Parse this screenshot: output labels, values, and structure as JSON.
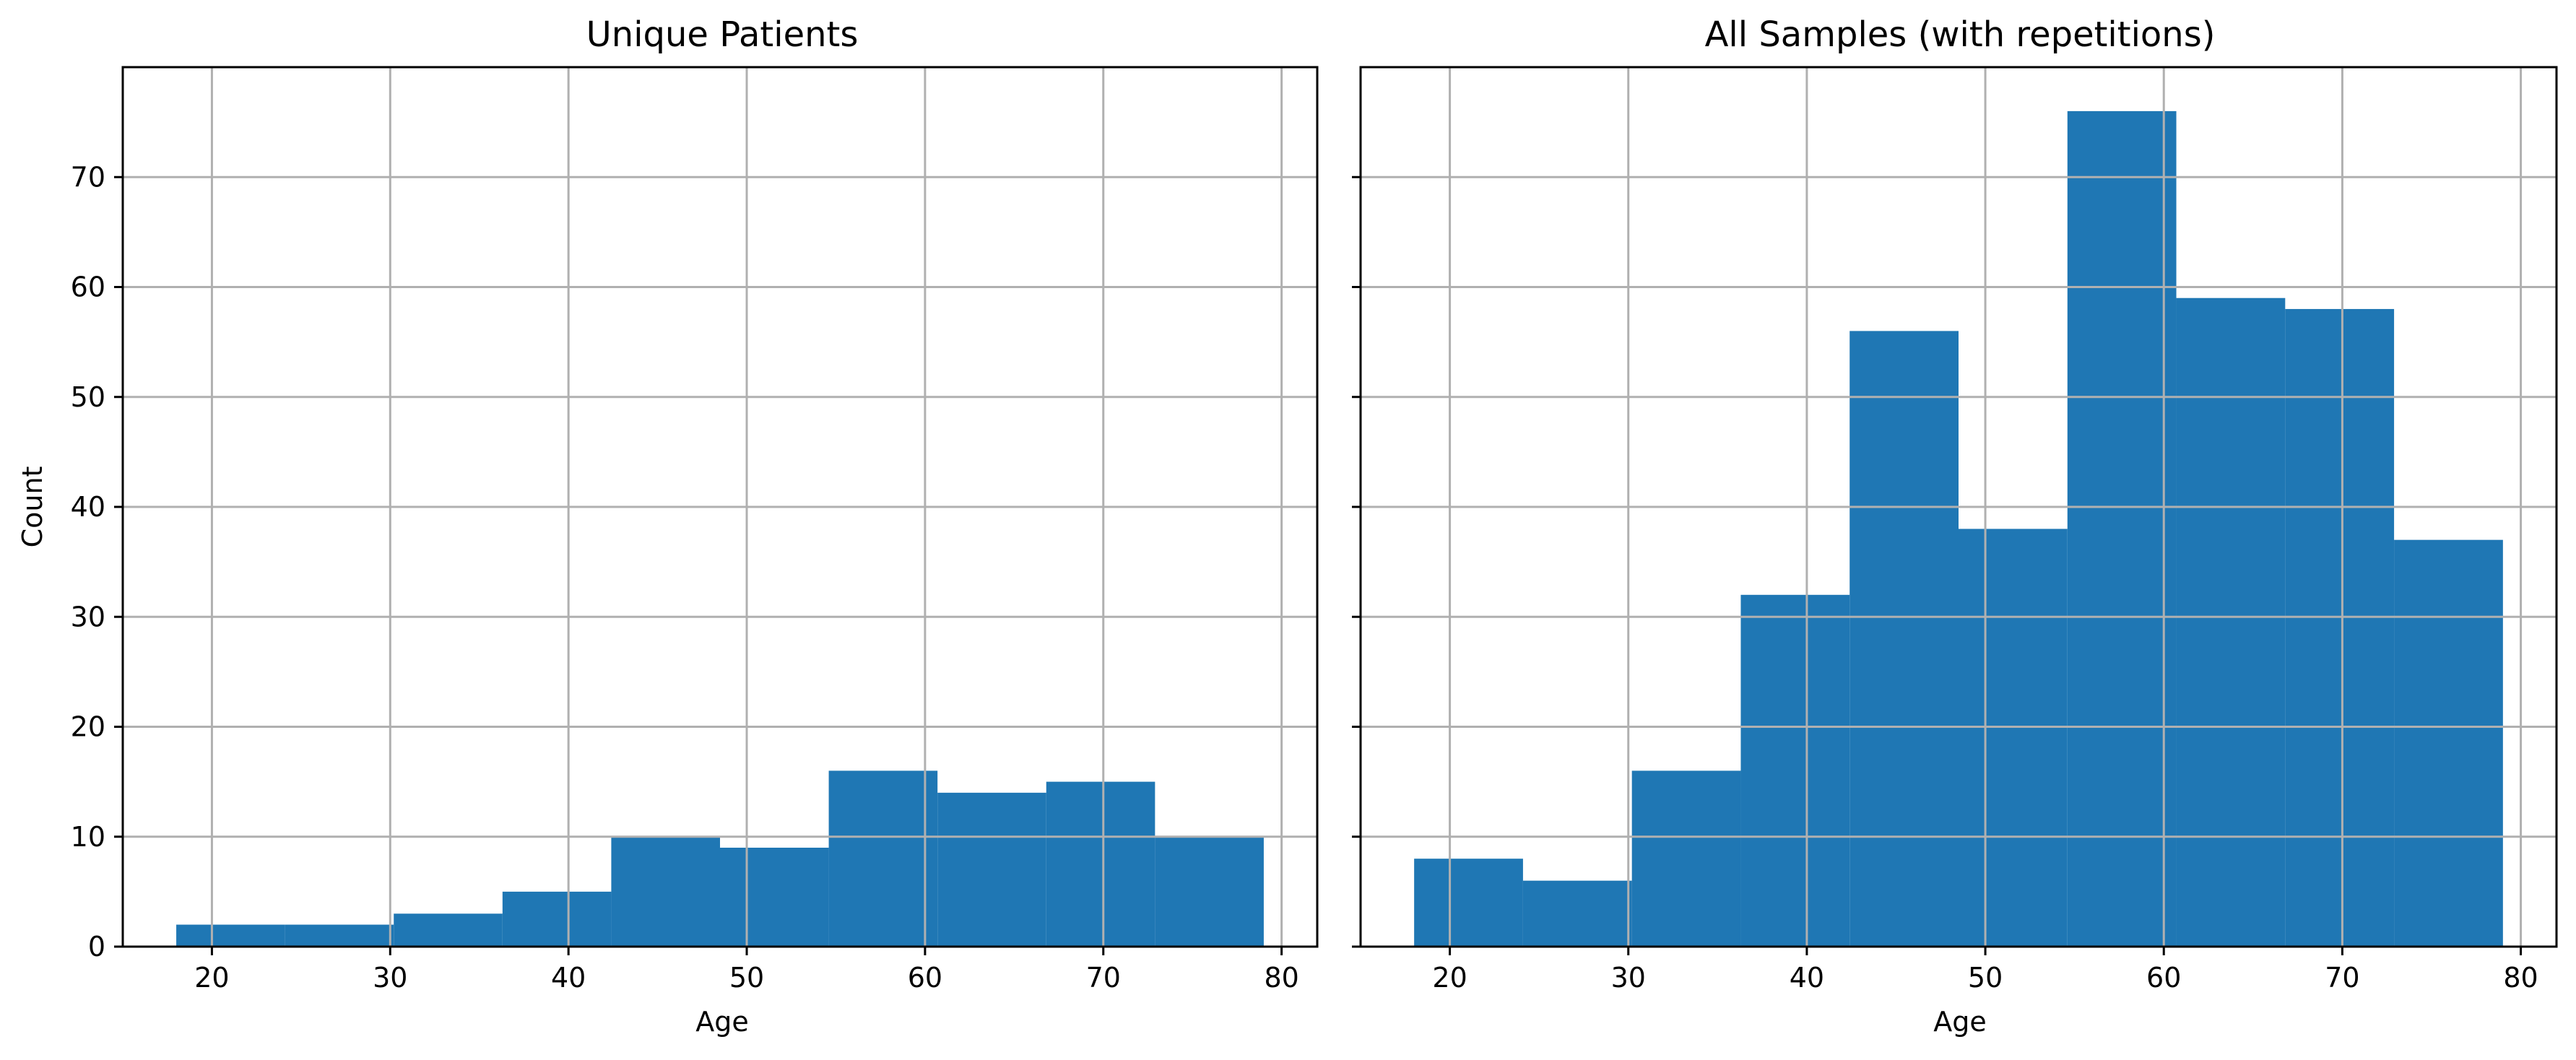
{
  "colors": {
    "bar": "#1f77b4",
    "grid": "#b0b0b0",
    "axis": "#000000",
    "background": "#ffffff"
  },
  "chart_data": [
    {
      "type": "bar",
      "title": "Unique Patients",
      "xlabel": "Age",
      "ylabel": "Count",
      "xlim": [
        15,
        82
      ],
      "ylim": [
        0,
        80
      ],
      "xticks": [
        20,
        30,
        40,
        50,
        60,
        70,
        80
      ],
      "yticks": [
        0,
        10,
        20,
        30,
        40,
        50,
        60,
        70
      ],
      "grid": true,
      "bins": [
        {
          "x0": 18.0,
          "x1": 24.1,
          "value": 2
        },
        {
          "x0": 24.1,
          "x1": 30.2,
          "value": 2
        },
        {
          "x0": 30.2,
          "x1": 36.3,
          "value": 3
        },
        {
          "x0": 36.3,
          "x1": 42.4,
          "value": 5
        },
        {
          "x0": 42.4,
          "x1": 48.5,
          "value": 10
        },
        {
          "x0": 48.5,
          "x1": 54.6,
          "value": 9
        },
        {
          "x0": 54.6,
          "x1": 60.7,
          "value": 16
        },
        {
          "x0": 60.7,
          "x1": 66.8,
          "value": 14
        },
        {
          "x0": 66.8,
          "x1": 72.9,
          "value": 15
        },
        {
          "x0": 72.9,
          "x1": 79.0,
          "value": 10
        }
      ]
    },
    {
      "type": "bar",
      "title": "All Samples (with repetitions)",
      "xlabel": "Age",
      "ylabel": "",
      "xlim": [
        15,
        82
      ],
      "ylim": [
        0,
        80
      ],
      "xticks": [
        20,
        30,
        40,
        50,
        60,
        70,
        80
      ],
      "yticks": [
        0,
        10,
        20,
        30,
        40,
        50,
        60,
        70
      ],
      "grid": true,
      "bins": [
        {
          "x0": 18.0,
          "x1": 24.1,
          "value": 8
        },
        {
          "x0": 24.1,
          "x1": 30.2,
          "value": 6
        },
        {
          "x0": 30.2,
          "x1": 36.3,
          "value": 16
        },
        {
          "x0": 36.3,
          "x1": 42.4,
          "value": 32
        },
        {
          "x0": 42.4,
          "x1": 48.5,
          "value": 56
        },
        {
          "x0": 48.5,
          "x1": 54.6,
          "value": 38
        },
        {
          "x0": 54.6,
          "x1": 60.7,
          "value": 76
        },
        {
          "x0": 60.7,
          "x1": 66.8,
          "value": 59
        },
        {
          "x0": 66.8,
          "x1": 72.9,
          "value": 58
        },
        {
          "x0": 72.9,
          "x1": 79.0,
          "value": 37
        }
      ]
    }
  ]
}
